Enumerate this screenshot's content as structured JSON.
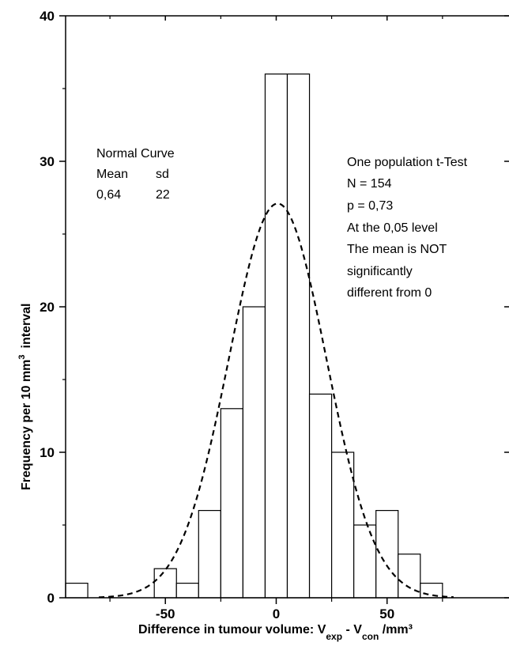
{
  "chart_data": {
    "type": "bar",
    "subtype": "histogram",
    "bin_width": 10,
    "xlim": [
      -95,
      105
    ],
    "ylim": [
      0,
      40
    ],
    "x_ticks": [
      -50,
      0,
      50
    ],
    "y_ticks": [
      0,
      10,
      20,
      30,
      40
    ],
    "x_tick_labels": [
      "-50",
      "0",
      "50"
    ],
    "y_tick_labels": [
      "0",
      "10",
      "20",
      "30",
      "40"
    ],
    "bins": [
      {
        "from": -95,
        "to": -85,
        "value": 1
      },
      {
        "from": -55,
        "to": -45,
        "value": 2
      },
      {
        "from": -45,
        "to": -35,
        "value": 1
      },
      {
        "from": -35,
        "to": -25,
        "value": 6
      },
      {
        "from": -25,
        "to": -15,
        "value": 13
      },
      {
        "from": -15,
        "to": -5,
        "value": 20
      },
      {
        "from": -5,
        "to": 5,
        "value": 36
      },
      {
        "from": 5,
        "to": 15,
        "value": 36
      },
      {
        "from": 15,
        "to": 25,
        "value": 14
      },
      {
        "from": 25,
        "to": 35,
        "value": 10
      },
      {
        "from": 35,
        "to": 45,
        "value": 5
      },
      {
        "from": 45,
        "to": 55,
        "value": 6
      },
      {
        "from": 55,
        "to": 65,
        "value": 3
      },
      {
        "from": 65,
        "to": 75,
        "value": 1
      }
    ],
    "normal_curve": {
      "mean": 0.64,
      "sd": 22,
      "peak": 27.1,
      "x_range": [
        -80,
        80
      ],
      "style": "dashed"
    },
    "ylabel": "Frequency per 10 mm",
    "ylabel_sup": "3",
    "ylabel_tail": "interval",
    "xlabel": {
      "prefix": "Difference in tumour volume: V",
      "sub1": "exp",
      "mid": " - V",
      "sub2": "con",
      "suffix": " /mm³"
    },
    "normal_curve_legend": {
      "lines": [
        "Normal Curve"
      ],
      "row2": [
        "Mean",
        "sd"
      ],
      "row3": [
        "0,64",
        "22"
      ]
    },
    "ttest_annotation": [
      "One population t-Test",
      "N = 154",
      "p = 0,73",
      "At the 0,05 level",
      "The mean  is NOT",
      "significantly",
      "different from 0"
    ]
  }
}
